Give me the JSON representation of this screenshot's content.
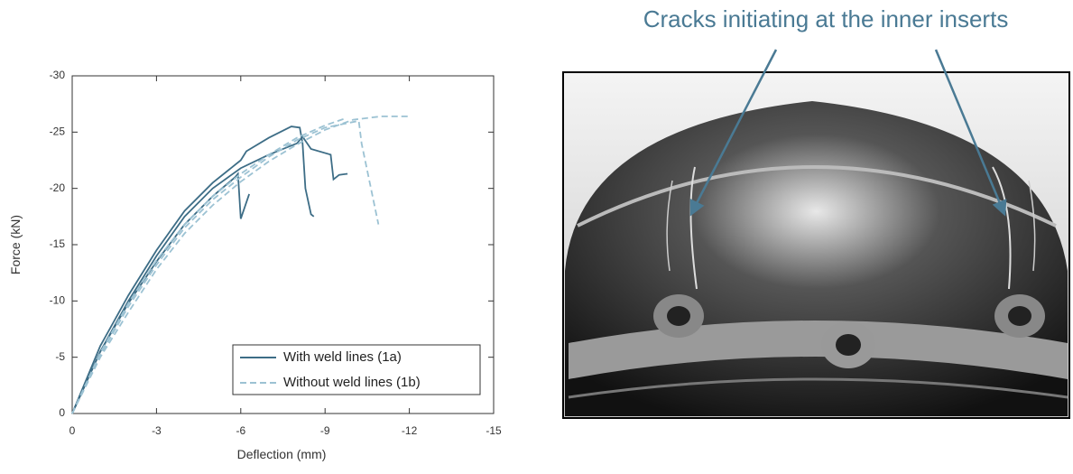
{
  "chart_data": {
    "type": "line",
    "xlabel": "Deflection (mm)",
    "ylabel": "Force (kN)",
    "xlim": [
      0,
      -15
    ],
    "xticks": [
      0,
      -3,
      -6,
      -9,
      -12,
      -15
    ],
    "ylim": [
      0,
      -30
    ],
    "yticks": [
      0,
      -5,
      -10,
      -15,
      -20,
      -25,
      -30
    ],
    "annotation": "Cracks initiating at the inner inserts",
    "legend": "lower right",
    "series": [
      {
        "name": "With weld lines (1a)",
        "color": "#3d6d86",
        "dash": "solid",
        "curves": [
          {
            "x": [
              0,
              -0.5,
              -1,
              -2,
              -3,
              -4,
              -5,
              -6,
              -6.2,
              -7,
              -7.8,
              -8.1,
              -8.2,
              -8.3,
              -8.5,
              -8.6
            ],
            "values": [
              0,
              -3,
              -6,
              -10.5,
              -14.5,
              -18,
              -20.5,
              -22.5,
              -23.3,
              -24.5,
              -25.5,
              -25.4,
              -24,
              -20,
              -17.7,
              -17.5
            ]
          },
          {
            "x": [
              0,
              -1,
              -2,
              -3,
              -4,
              -5,
              -6,
              -7,
              -8,
              -8.2,
              -8.5,
              -9.2,
              -9.3,
              -9.5,
              -9.8
            ],
            "values": [
              0,
              -5.5,
              -10,
              -14,
              -17.5,
              -20,
              -21.8,
              -23,
              -24,
              -24.6,
              -23.5,
              -23,
              -20.8,
              -21.2,
              -21.3
            ]
          },
          {
            "x": [
              0,
              -1,
              -2,
              -3,
              -4,
              -5,
              -5.8,
              -5.9,
              -6,
              -6.3
            ],
            "values": [
              0,
              -5.5,
              -9.8,
              -13.5,
              -16.8,
              -19.3,
              -21,
              -21.3,
              -17.3,
              -19.5
            ]
          }
        ]
      },
      {
        "name": "Without weld lines (1b)",
        "color": "#9cc2d3",
        "dash": "dashed",
        "curves": [
          {
            "x": [
              0,
              -1,
              -2,
              -3,
              -4,
              -5,
              -6,
              -7,
              -8,
              -9,
              -10,
              -11,
              -12
            ],
            "values": [
              0,
              -5,
              -9,
              -12.8,
              -16,
              -18.5,
              -20.6,
              -22.4,
              -23.9,
              -25.2,
              -26.1,
              -26.4,
              -26.4
            ]
          },
          {
            "x": [
              0,
              -1,
              -2,
              -3,
              -4,
              -5,
              -6,
              -7,
              -8,
              -9,
              -10.2,
              -10.3,
              -10.9
            ],
            "values": [
              0,
              -5.2,
              -9.5,
              -13.2,
              -16.5,
              -19,
              -21,
              -22.8,
              -24.3,
              -25.4,
              -26,
              -24,
              -16.8
            ]
          },
          {
            "x": [
              0,
              -1,
              -2,
              -3,
              -4,
              -5,
              -6,
              -7,
              -8,
              -9,
              -9.7
            ],
            "values": [
              0,
              -5.4,
              -9.8,
              -13.6,
              -16.8,
              -19.3,
              -21.3,
              -23,
              -24.5,
              -25.6,
              -26.2
            ]
          }
        ]
      }
    ]
  }
}
